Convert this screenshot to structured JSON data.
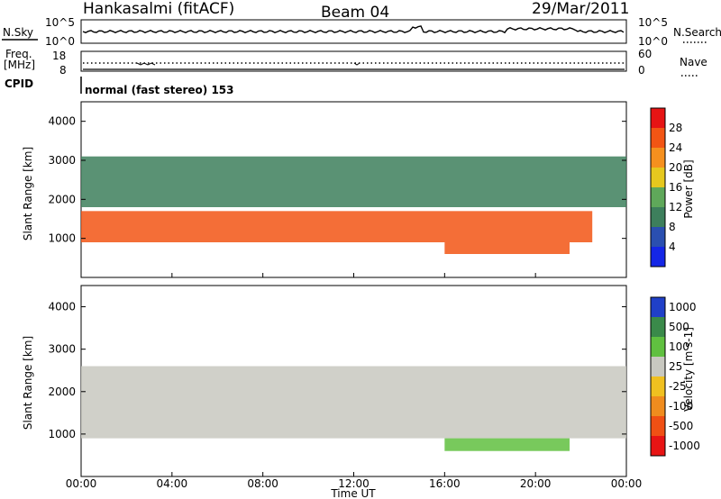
{
  "header": {
    "station": "Hankasalmi (fitACF)",
    "beam": "Beam 04",
    "date": "29/Mar/2011"
  },
  "nsky_panel": {
    "left_label": "N.Sky",
    "left_ticks": [
      "10^5",
      "10^0"
    ],
    "right_ticks": [
      "10^5",
      "10^0"
    ],
    "right_label": "N.Search",
    "right_legend_line": "dotted"
  },
  "freq_panel": {
    "left_label_1": "Freq.",
    "left_label_2": "[MHz]",
    "left_ticks": [
      "18",
      "8"
    ],
    "right_ticks": [
      "60",
      "0"
    ],
    "right_label": "Nave",
    "right_legend_line": "dotted"
  },
  "cpid_panel": {
    "label": "CPID",
    "mode_text": "normal (fast stereo) 153"
  },
  "chart_data": [
    {
      "type": "heatmap",
      "parameter": "Power",
      "ylabel": "Slant Range [km]",
      "ylim": [
        0,
        4500
      ],
      "yticks": [
        1000,
        2000,
        3000,
        4000
      ],
      "colorbar": {
        "label": "Power [dB]",
        "range": [
          0,
          32
        ],
        "ticks": [
          "4",
          "8",
          "12",
          "16",
          "20",
          "24",
          "28"
        ],
        "colors": [
          "#1426e6",
          "#2a4fb0",
          "#3d7f5c",
          "#5fa85a",
          "#e6c81e",
          "#f5901e",
          "#f25514",
          "#e61414"
        ]
      },
      "bands": [
        {
          "region": "main echo band",
          "start": "00:00",
          "end": "22:30",
          "range_km": [
            900,
            1700
          ],
          "power_db": 26
        },
        {
          "region": "upper diffuse band",
          "start": "00:00",
          "end": "24:00",
          "range_km": [
            1800,
            3100
          ],
          "power_db": 10
        },
        {
          "region": "near range band",
          "start": "16:00",
          "end": "21:30",
          "range_km": [
            600,
            900
          ],
          "power_db": 26
        }
      ]
    },
    {
      "type": "heatmap",
      "parameter": "Velocity",
      "ylabel": "Slant Range [km]",
      "ylim": [
        0,
        4500
      ],
      "yticks": [
        1000,
        2000,
        3000,
        4000
      ],
      "xlabel": "Time UT",
      "xticks": [
        "00:00",
        "04:00",
        "08:00",
        "12:00",
        "16:00",
        "20:00",
        "00:00"
      ],
      "colorbar": {
        "label": "Velocity [m s-1]",
        "ticks": [
          "1000",
          "500",
          "100",
          "25",
          "-25",
          "-100",
          "-500",
          "-1000"
        ],
        "colors": [
          "#2040c8",
          "#3a8a4a",
          "#60c040",
          "#c8c8c0",
          "#f0c020",
          "#f08c1e",
          "#f05014",
          "#e81414"
        ]
      },
      "bands": [
        {
          "region": "main echo band",
          "start": "00:00",
          "end": "24:00",
          "range_km": [
            900,
            2600
          ],
          "velocity": "ground scatter"
        },
        {
          "region": "near range band",
          "start": "16:00",
          "end": "21:30",
          "range_km": [
            600,
            900
          ],
          "velocity_ms": 100
        }
      ]
    }
  ]
}
